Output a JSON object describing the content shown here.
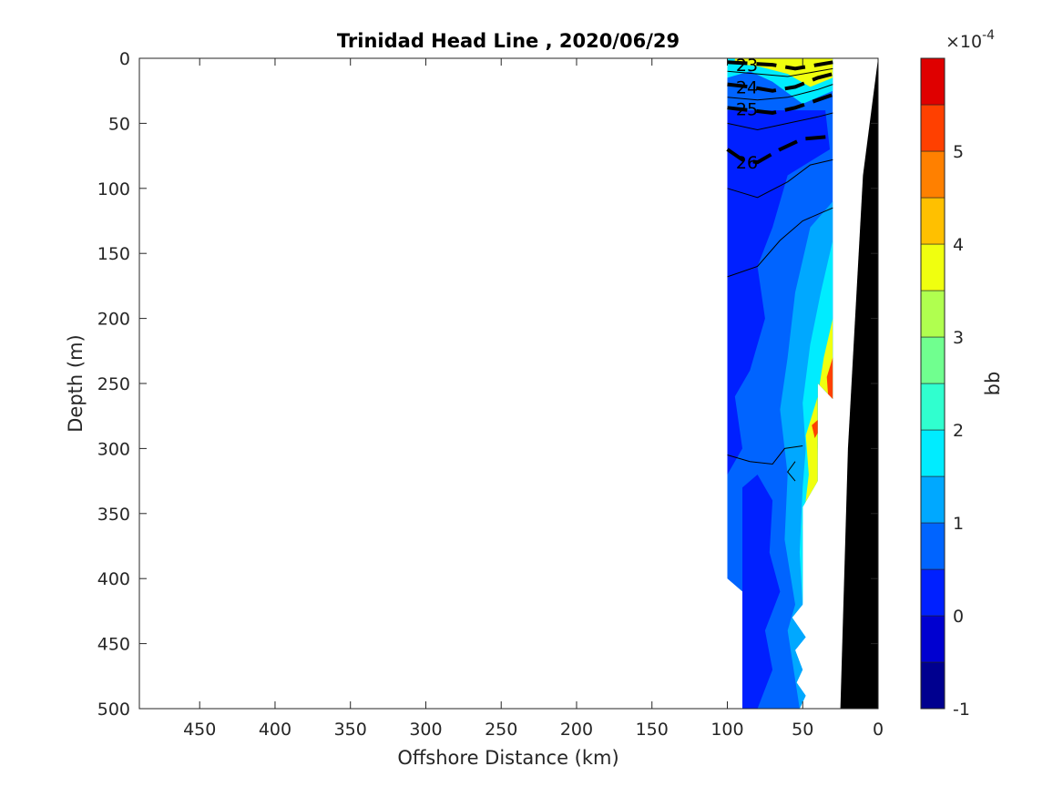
{
  "chart_data": {
    "type": "contourf",
    "title": "Trinidad Head Line , 2020/06/29",
    "xlabel": "Offshore Distance (km)",
    "ylabel": "Depth (m)",
    "xlim": [
      490,
      0
    ],
    "ylim": [
      0,
      500
    ],
    "x_reversed": true,
    "y_reversed": true,
    "x_ticks": [
      450,
      400,
      350,
      300,
      250,
      200,
      150,
      100,
      50,
      0
    ],
    "y_ticks": [
      0,
      50,
      100,
      150,
      200,
      250,
      300,
      350,
      400,
      450,
      500
    ],
    "colorbar": {
      "label": "bb",
      "exponent_label": "×10",
      "exponent_power": "-4",
      "range": [
        -1,
        6
      ],
      "levels": [
        -1,
        -0.5,
        0,
        0.5,
        1,
        1.5,
        2,
        2.5,
        3,
        3.5,
        4,
        4.5,
        5,
        5.5,
        6
      ],
      "ticks": [
        -1,
        0,
        1,
        2,
        3,
        4,
        5
      ],
      "colors": [
        "#00008f",
        "#0000d0",
        "#0020ff",
        "#0064ff",
        "#00a8ff",
        "#00ecff",
        "#30ffcf",
        "#70ff8f",
        "#b0ff4f",
        "#f0ff0f",
        "#ffc000",
        "#ff8000",
        "#ff4000",
        "#df0000",
        "#b00000"
      ]
    },
    "density_contours": [
      {
        "level": "23",
        "label_x": 87,
        "label_y": 5
      },
      {
        "level": "24",
        "label_x": 87,
        "label_y": 22
      },
      {
        "level": "25",
        "label_x": 87,
        "label_y": 39
      },
      {
        "level": "26",
        "label_x": 87,
        "label_y": 80
      }
    ],
    "field_colors": {
      "deep": "#0020ff",
      "mid": "#0064ff",
      "light": "#00a8ff",
      "cyan": "#00ecff",
      "hot": "#ff4000",
      "warm": "#f0ff0f",
      "seafloor": "#000000"
    }
  }
}
